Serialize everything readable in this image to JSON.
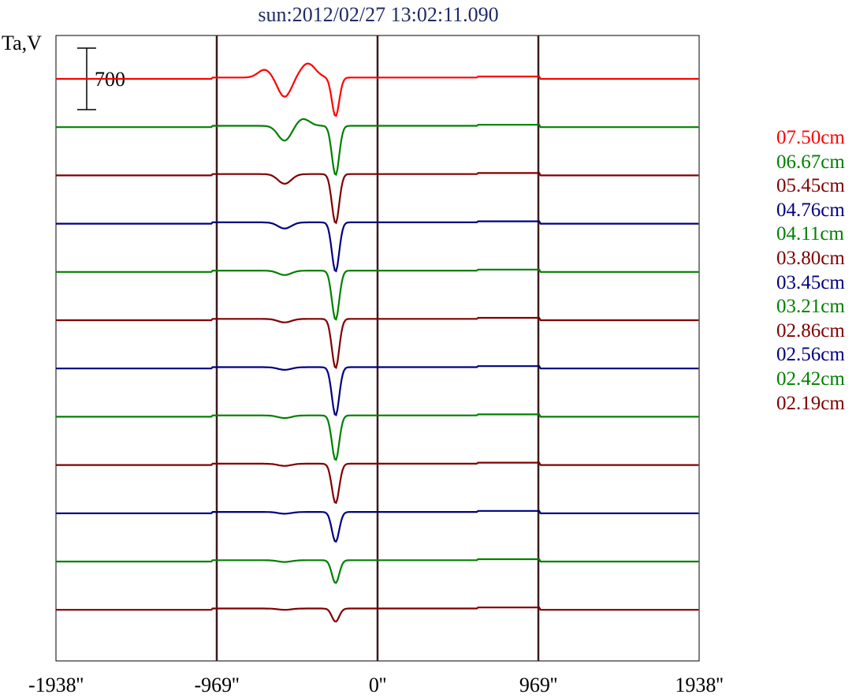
{
  "title": "sun:2012/02/27 13:02:11.090",
  "ylabel": "Ta,V",
  "scale_bar_label": "700",
  "chart_data": {
    "type": "line",
    "title": "sun:2012/02/27 13:02:11.090",
    "ylabel": "Ta,V",
    "xlim": [
      -1938,
      1938
    ],
    "xticks": [
      -1938,
      -969,
      0,
      969,
      1938
    ],
    "xtick_labels": [
      "-1938''",
      "-969''",
      "0''",
      "969''",
      "1938''"
    ],
    "vertical_lines": [
      -969,
      0,
      969
    ],
    "scale_bar": 700,
    "series": [
      {
        "name": "07.50cm",
        "color": "#ff0000",
        "peak_dip": -440,
        "wing_dip": -220
      },
      {
        "name": "06.67cm",
        "color": "#008000",
        "peak_dip": -560,
        "wing_dip": -170
      },
      {
        "name": "05.45cm",
        "color": "#800000",
        "peak_dip": -560,
        "wing_dip": -110
      },
      {
        "name": "04.76cm",
        "color": "#000080",
        "peak_dip": -560,
        "wing_dip": -70
      },
      {
        "name": "04.11cm",
        "color": "#008000",
        "peak_dip": -560,
        "wing_dip": -50
      },
      {
        "name": "03.80cm",
        "color": "#800000",
        "peak_dip": -560,
        "wing_dip": -40
      },
      {
        "name": "03.45cm",
        "color": "#000080",
        "peak_dip": -550,
        "wing_dip": -30
      },
      {
        "name": "03.21cm",
        "color": "#008000",
        "peak_dip": -510,
        "wing_dip": -30
      },
      {
        "name": "02.86cm",
        "color": "#800000",
        "peak_dip": -450,
        "wing_dip": -25
      },
      {
        "name": "02.56cm",
        "color": "#000080",
        "peak_dip": -340,
        "wing_dip": -20
      },
      {
        "name": "02.42cm",
        "color": "#008000",
        "peak_dip": -260,
        "wing_dip": -20
      },
      {
        "name": "02.19cm",
        "color": "#800000",
        "peak_dip": -150,
        "wing_dip": -15
      }
    ]
  }
}
